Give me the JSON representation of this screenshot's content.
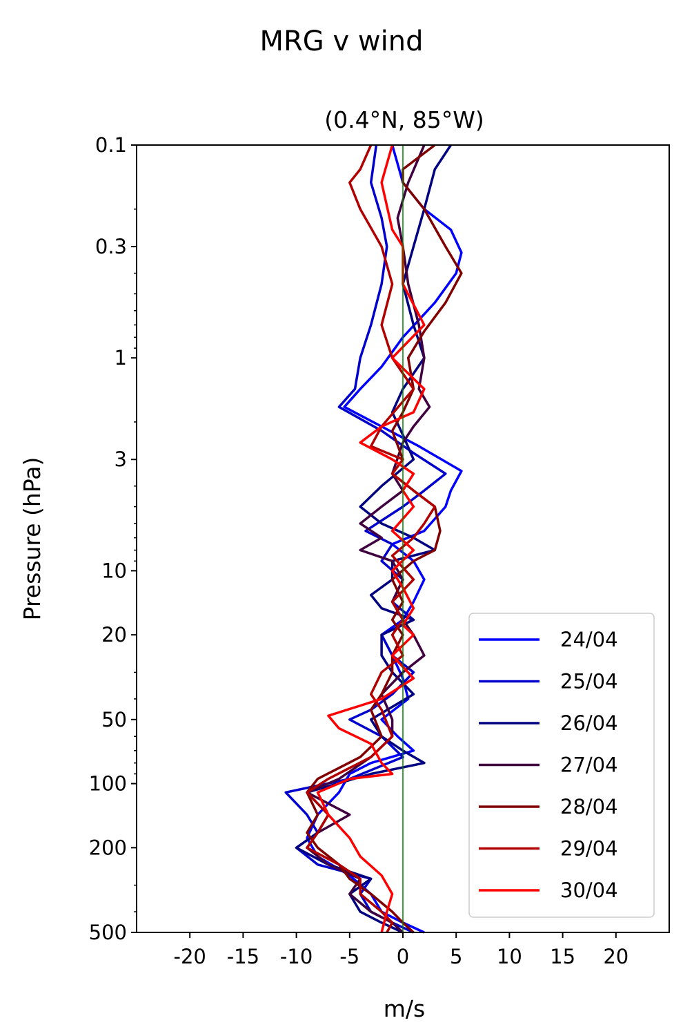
{
  "chart_data": {
    "type": "line",
    "title": "MRG v wind",
    "subtitle": "(0.4°N, 85°W)",
    "xlabel": "m/s",
    "ylabel": "Pressure (hPa)",
    "xlim": [
      -25,
      25
    ],
    "xticks": [
      -20,
      -15,
      -10,
      -5,
      0,
      5,
      10,
      15,
      20
    ],
    "xtick_labels": [
      "-20",
      "-15",
      "-10",
      "-5",
      "0",
      "5",
      "10",
      "15",
      "20"
    ],
    "ylim": [
      500,
      0.1
    ],
    "yscale": "log",
    "yticks": [
      0.1,
      0.3,
      1,
      3,
      10,
      20,
      50,
      100,
      200,
      500
    ],
    "ytick_labels": [
      "0.1",
      "0.3",
      "1",
      "3",
      "10",
      "20",
      "50",
      "100",
      "200",
      "500"
    ],
    "reference_line": {
      "x": 0,
      "color": "#008000"
    },
    "legend_position": "lower-right",
    "series": [
      {
        "name": "24/04",
        "color": "#0000ff",
        "points": [
          [
            -1,
            0.1
          ],
          [
            0,
            0.15
          ],
          [
            2,
            0.2
          ],
          [
            4.5,
            0.25
          ],
          [
            5.5,
            0.32
          ],
          [
            5,
            0.4
          ],
          [
            3,
            0.55
          ],
          [
            0,
            0.8
          ],
          [
            -2,
            1.1
          ],
          [
            -4,
            1.4
          ],
          [
            -5.5,
            1.7
          ],
          [
            -2,
            2.1
          ],
          [
            1.5,
            2.6
          ],
          [
            5.5,
            3.4
          ],
          [
            4.5,
            4.2
          ],
          [
            4,
            5
          ],
          [
            2,
            6.5
          ],
          [
            -1,
            7.5
          ],
          [
            1,
            9
          ],
          [
            2,
            11
          ],
          [
            1,
            14
          ],
          [
            0,
            17
          ],
          [
            -2,
            20
          ],
          [
            -1,
            25
          ],
          [
            0,
            32
          ],
          [
            0.5,
            40
          ],
          [
            -2,
            50
          ],
          [
            -0.5,
            60
          ],
          [
            1,
            70
          ],
          [
            -3,
            80
          ],
          [
            -5,
            90
          ],
          [
            -6,
            110
          ],
          [
            -8,
            140
          ],
          [
            -9,
            180
          ],
          [
            -8,
            220
          ],
          [
            -5,
            270
          ],
          [
            -3,
            330
          ],
          [
            -2,
            400
          ],
          [
            0,
            450
          ],
          [
            2,
            500
          ]
        ]
      },
      {
        "name": "25/04",
        "color": "#0000cc",
        "points": [
          [
            -2.5,
            0.1
          ],
          [
            -3,
            0.15
          ],
          [
            -2,
            0.22
          ],
          [
            -1.5,
            0.3
          ],
          [
            -2,
            0.45
          ],
          [
            -3,
            0.7
          ],
          [
            -4,
            1.0
          ],
          [
            -4.5,
            1.4
          ],
          [
            -6,
            1.7
          ],
          [
            -2,
            2.2
          ],
          [
            1,
            2.8
          ],
          [
            4,
            3.5
          ],
          [
            2,
            4.2
          ],
          [
            0,
            5
          ],
          [
            -3.5,
            6.5
          ],
          [
            -1,
            7.5
          ],
          [
            -2,
            9
          ],
          [
            0,
            11
          ],
          [
            -1,
            14
          ],
          [
            1,
            17
          ],
          [
            -2,
            20
          ],
          [
            -1,
            25
          ],
          [
            1,
            30
          ],
          [
            -1,
            38
          ],
          [
            -3,
            45
          ],
          [
            -5,
            50
          ],
          [
            -2,
            60
          ],
          [
            0,
            75
          ],
          [
            -5,
            95
          ],
          [
            -11,
            110
          ],
          [
            -9,
            140
          ],
          [
            -8,
            170
          ],
          [
            -10,
            200
          ],
          [
            -8,
            240
          ],
          [
            -3,
            280
          ],
          [
            -4,
            330
          ],
          [
            -3,
            400
          ],
          [
            -1,
            450
          ],
          [
            1,
            500
          ]
        ]
      },
      {
        "name": "26/04",
        "color": "#000080",
        "points": [
          [
            4.5,
            0.1
          ],
          [
            3,
            0.13
          ],
          [
            2,
            0.2
          ],
          [
            1,
            0.3
          ],
          [
            0,
            0.45
          ],
          [
            1,
            0.7
          ],
          [
            2,
            1.0
          ],
          [
            0,
            1.4
          ],
          [
            -1,
            1.8
          ],
          [
            0,
            2.3
          ],
          [
            1,
            3
          ],
          [
            -2,
            4
          ],
          [
            -4,
            5
          ],
          [
            -2,
            6
          ],
          [
            1,
            7
          ],
          [
            3,
            8
          ],
          [
            -1,
            9
          ],
          [
            -1,
            11
          ],
          [
            -3,
            13
          ],
          [
            -2,
            15
          ],
          [
            1,
            17
          ],
          [
            -2,
            20
          ],
          [
            -2,
            25
          ],
          [
            -1,
            30
          ],
          [
            1,
            38
          ],
          [
            -3,
            50
          ],
          [
            -2,
            60
          ],
          [
            0,
            70
          ],
          [
            2,
            80
          ],
          [
            -3,
            90
          ],
          [
            -9,
            110
          ],
          [
            -7,
            140
          ],
          [
            -8,
            170
          ],
          [
            -10,
            200
          ],
          [
            -7,
            240
          ],
          [
            -3,
            280
          ],
          [
            -5,
            330
          ],
          [
            -4,
            400
          ],
          [
            -2,
            450
          ],
          [
            0,
            500
          ]
        ]
      },
      {
        "name": "27/04",
        "color": "#400040",
        "points": [
          [
            2,
            0.1
          ],
          [
            0.5,
            0.15
          ],
          [
            -0.5,
            0.22
          ],
          [
            0,
            0.3
          ],
          [
            0.5,
            0.45
          ],
          [
            1.5,
            0.7
          ],
          [
            2,
            1.0
          ],
          [
            1.5,
            1.4
          ],
          [
            2.5,
            1.7
          ],
          [
            1,
            2.1
          ],
          [
            0,
            2.5
          ],
          [
            -1,
            3.5
          ],
          [
            0,
            4.2
          ],
          [
            -2,
            5
          ],
          [
            -4,
            6
          ],
          [
            -2,
            7
          ],
          [
            -4,
            8
          ],
          [
            -1,
            9
          ],
          [
            0,
            11
          ],
          [
            -1,
            14
          ],
          [
            0,
            17
          ],
          [
            1,
            20
          ],
          [
            2,
            25
          ],
          [
            0,
            30
          ],
          [
            -2,
            38
          ],
          [
            -1,
            50
          ],
          [
            -1,
            60
          ],
          [
            -3,
            75
          ],
          [
            -6,
            95
          ],
          [
            -9,
            110
          ],
          [
            -5,
            140
          ],
          [
            -8,
            170
          ],
          [
            -9,
            200
          ],
          [
            -7,
            240
          ],
          [
            -4,
            280
          ],
          [
            -5,
            330
          ],
          [
            -3,
            400
          ],
          [
            -1,
            450
          ],
          [
            0,
            500
          ]
        ]
      },
      {
        "name": "28/04",
        "color": "#800000",
        "points": [
          [
            3,
            0.1
          ],
          [
            0,
            0.13
          ],
          [
            0,
            0.15
          ],
          [
            2,
            0.2
          ],
          [
            4,
            0.3
          ],
          [
            5.5,
            0.4
          ],
          [
            4,
            0.55
          ],
          [
            2,
            0.75
          ],
          [
            0.5,
            1.0
          ],
          [
            1,
            1.4
          ],
          [
            0,
            1.8
          ],
          [
            -1,
            2.2
          ],
          [
            0,
            3
          ],
          [
            -1,
            3.5
          ],
          [
            1,
            4.2
          ],
          [
            3,
            5
          ],
          [
            3.5,
            6.5
          ],
          [
            3,
            8
          ],
          [
            1,
            9
          ],
          [
            -1,
            11
          ],
          [
            0,
            14
          ],
          [
            -1,
            17
          ],
          [
            0,
            20
          ],
          [
            -1,
            25
          ],
          [
            -1,
            30
          ],
          [
            -2,
            38
          ],
          [
            -3,
            45
          ],
          [
            -2,
            60
          ],
          [
            -4,
            75
          ],
          [
            -8,
            95
          ],
          [
            -9,
            110
          ],
          [
            -8,
            140
          ],
          [
            -9,
            170
          ],
          [
            -8,
            200
          ],
          [
            -6,
            240
          ],
          [
            -5,
            280
          ],
          [
            -3,
            330
          ],
          [
            -1,
            400
          ],
          [
            0,
            450
          ],
          [
            1,
            500
          ]
        ]
      },
      {
        "name": "29/04",
        "color": "#b00000",
        "points": [
          [
            -3,
            0.1
          ],
          [
            -4,
            0.13
          ],
          [
            -5,
            0.15
          ],
          [
            -4,
            0.2
          ],
          [
            -2,
            0.3
          ],
          [
            -1,
            0.45
          ],
          [
            -2,
            0.7
          ],
          [
            -1,
            1.0
          ],
          [
            1,
            1.4
          ],
          [
            -2,
            2.1
          ],
          [
            -3,
            2.6
          ],
          [
            0,
            3
          ],
          [
            -1,
            3.5
          ],
          [
            1,
            4.2
          ],
          [
            3,
            5
          ],
          [
            2,
            6
          ],
          [
            1,
            7
          ],
          [
            -1,
            8.5
          ],
          [
            1,
            11
          ],
          [
            -1,
            14
          ],
          [
            0,
            17
          ],
          [
            -1,
            20
          ],
          [
            0,
            25
          ],
          [
            -2,
            30
          ],
          [
            -3,
            38
          ],
          [
            -2,
            45
          ],
          [
            -1,
            60
          ],
          [
            -3,
            75
          ],
          [
            -7,
            95
          ],
          [
            -9,
            110
          ],
          [
            -7,
            140
          ],
          [
            -8,
            170
          ],
          [
            -9,
            200
          ],
          [
            -6,
            240
          ],
          [
            -4,
            280
          ],
          [
            -4,
            330
          ],
          [
            -2,
            400
          ],
          [
            -1,
            450
          ],
          [
            -1.5,
            500
          ]
        ]
      },
      {
        "name": "30/04",
        "color": "#ff0000",
        "points": [
          [
            -1,
            0.1
          ],
          [
            -2,
            0.15
          ],
          [
            -1,
            0.25
          ],
          [
            0,
            0.3
          ],
          [
            0,
            0.45
          ],
          [
            2,
            0.7
          ],
          [
            -1,
            1.0
          ],
          [
            2,
            1.4
          ],
          [
            1,
            1.8
          ],
          [
            -2,
            2.1
          ],
          [
            -4,
            2.5
          ],
          [
            -1,
            3
          ],
          [
            1,
            3.5
          ],
          [
            0,
            4.2
          ],
          [
            1,
            5
          ],
          [
            -1,
            6.5
          ],
          [
            1,
            8
          ],
          [
            -1,
            10
          ],
          [
            0,
            12
          ],
          [
            1,
            15
          ],
          [
            0,
            18
          ],
          [
            1,
            20
          ],
          [
            -1,
            25
          ],
          [
            1,
            32
          ],
          [
            -2,
            40
          ],
          [
            -7,
            48
          ],
          [
            -6,
            55
          ],
          [
            -3,
            65
          ],
          [
            -2,
            80
          ],
          [
            -1,
            90
          ],
          [
            -5,
            95
          ],
          [
            -8,
            110
          ],
          [
            -7,
            140
          ],
          [
            -5,
            180
          ],
          [
            -4,
            220
          ],
          [
            -2,
            270
          ],
          [
            -1,
            330
          ],
          [
            -1.5,
            400
          ],
          [
            -2,
            500
          ]
        ]
      }
    ]
  }
}
